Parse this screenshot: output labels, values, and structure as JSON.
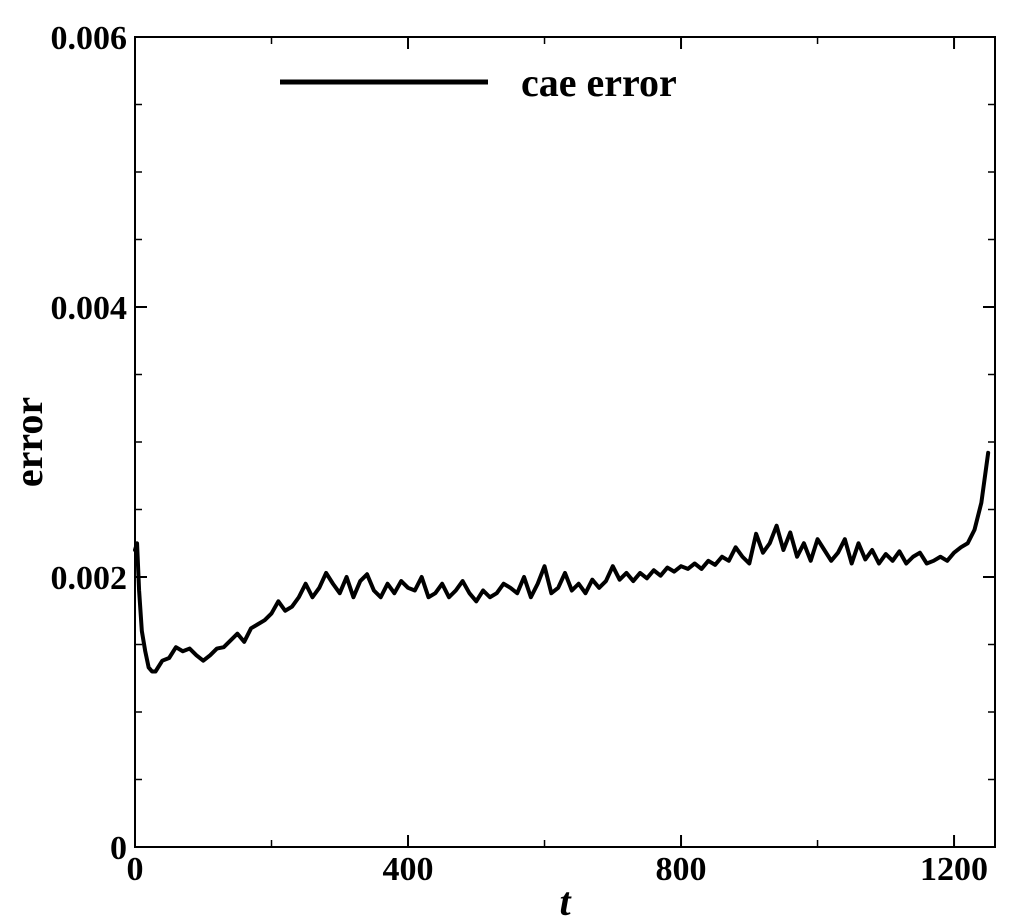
{
  "chart_data": {
    "type": "line",
    "title": "",
    "xlabel": "t",
    "ylabel": "error",
    "xlim": [
      0,
      1260
    ],
    "ylim": [
      0,
      0.006
    ],
    "x_ticks": [
      {
        "value": 0,
        "label": "0"
      },
      {
        "value": 400,
        "label": "400"
      },
      {
        "value": 800,
        "label": "800"
      },
      {
        "value": 1200,
        "label": "1200"
      }
    ],
    "y_ticks": [
      {
        "value": 0,
        "label": "0"
      },
      {
        "value": 0.002,
        "label": "0.002"
      },
      {
        "value": 0.004,
        "label": "0.004"
      },
      {
        "value": 0.006,
        "label": "0.006"
      }
    ],
    "grid": false,
    "legend_position": "top-center",
    "line_color": "#000000",
    "series": [
      {
        "name": "cae error",
        "x": [
          0,
          3,
          6,
          10,
          15,
          20,
          25,
          30,
          40,
          50,
          60,
          70,
          80,
          90,
          100,
          110,
          120,
          130,
          140,
          150,
          160,
          170,
          180,
          190,
          200,
          210,
          220,
          230,
          240,
          250,
          260,
          270,
          280,
          290,
          300,
          310,
          320,
          330,
          340,
          350,
          360,
          370,
          380,
          390,
          400,
          410,
          420,
          430,
          440,
          450,
          460,
          470,
          480,
          490,
          500,
          510,
          520,
          530,
          540,
          550,
          560,
          570,
          580,
          590,
          600,
          610,
          620,
          630,
          640,
          650,
          660,
          670,
          680,
          690,
          700,
          710,
          720,
          730,
          740,
          750,
          760,
          770,
          780,
          790,
          800,
          810,
          820,
          830,
          840,
          850,
          860,
          870,
          880,
          890,
          900,
          910,
          920,
          930,
          940,
          950,
          960,
          970,
          980,
          990,
          1000,
          1010,
          1020,
          1030,
          1040,
          1050,
          1060,
          1070,
          1080,
          1090,
          1100,
          1110,
          1120,
          1130,
          1140,
          1150,
          1160,
          1170,
          1180,
          1190,
          1200,
          1210,
          1220,
          1230,
          1240,
          1250
        ],
        "values": [
          0.0022,
          0.00225,
          0.0019,
          0.0016,
          0.00145,
          0.00133,
          0.0013,
          0.0013,
          0.00138,
          0.0014,
          0.00148,
          0.00145,
          0.00147,
          0.00142,
          0.00138,
          0.00142,
          0.00147,
          0.00148,
          0.00153,
          0.00158,
          0.00152,
          0.00162,
          0.00165,
          0.00168,
          0.00173,
          0.00182,
          0.00175,
          0.00178,
          0.00185,
          0.00195,
          0.00185,
          0.00192,
          0.00203,
          0.00195,
          0.00188,
          0.002,
          0.00185,
          0.00197,
          0.00202,
          0.0019,
          0.00185,
          0.00195,
          0.00188,
          0.00197,
          0.00192,
          0.0019,
          0.002,
          0.00185,
          0.00188,
          0.00195,
          0.00185,
          0.0019,
          0.00197,
          0.00188,
          0.00182,
          0.0019,
          0.00185,
          0.00188,
          0.00195,
          0.00192,
          0.00188,
          0.002,
          0.00185,
          0.00195,
          0.00208,
          0.00188,
          0.00192,
          0.00203,
          0.0019,
          0.00195,
          0.00188,
          0.00198,
          0.00192,
          0.00197,
          0.00208,
          0.00198,
          0.00203,
          0.00197,
          0.00203,
          0.00199,
          0.00205,
          0.00201,
          0.00207,
          0.00204,
          0.00208,
          0.00206,
          0.0021,
          0.00206,
          0.00212,
          0.00209,
          0.00215,
          0.00212,
          0.00222,
          0.00215,
          0.0021,
          0.00232,
          0.00218,
          0.00225,
          0.00238,
          0.0022,
          0.00233,
          0.00215,
          0.00225,
          0.00212,
          0.00228,
          0.0022,
          0.00212,
          0.00218,
          0.00228,
          0.0021,
          0.00225,
          0.00213,
          0.0022,
          0.0021,
          0.00217,
          0.00212,
          0.00219,
          0.0021,
          0.00215,
          0.00218,
          0.0021,
          0.00212,
          0.00215,
          0.00212,
          0.00218,
          0.00222,
          0.00225,
          0.00235,
          0.00255,
          0.00292
        ]
      }
    ]
  }
}
